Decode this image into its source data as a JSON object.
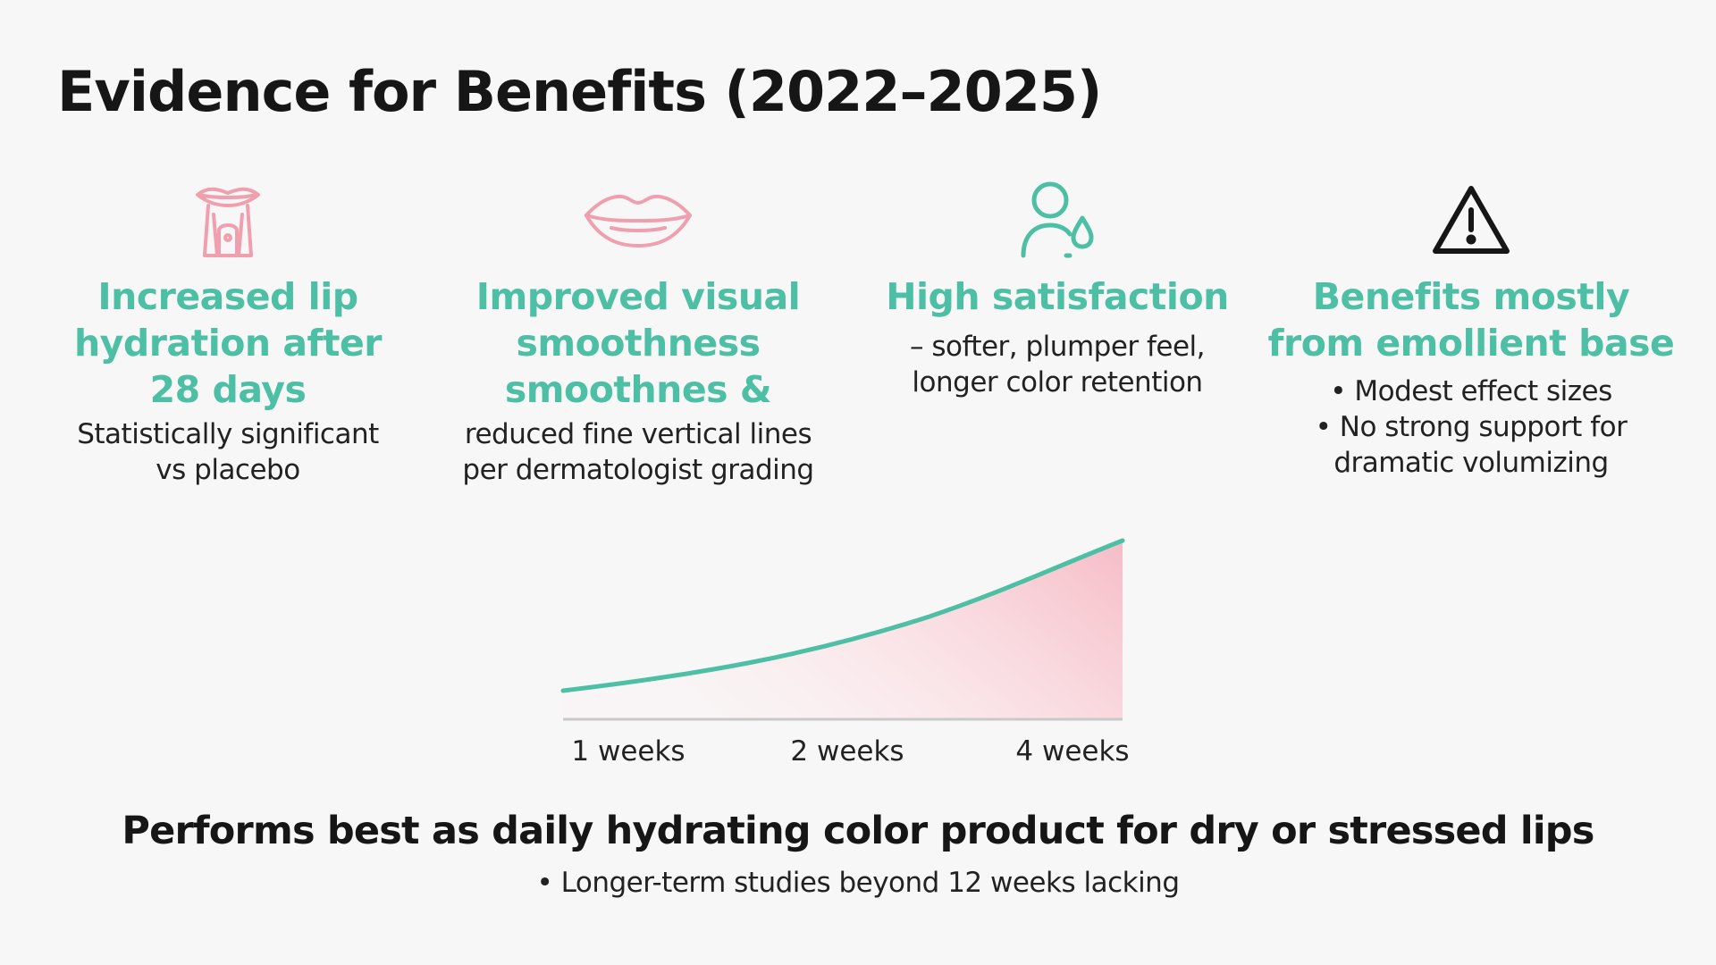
{
  "title": "Evidence for Benefits (2022–2025)",
  "columns": [
    {
      "icon": "lip-product-icon",
      "heading": [
        "Increased lip",
        "hydration after",
        "28 days"
      ],
      "body": [
        "Statistically significant",
        "vs placebo"
      ]
    },
    {
      "icon": "lips-icon",
      "heading": [
        "Improved visual",
        "smoothness",
        "smoothnes &"
      ],
      "body": [
        "reduced fine vertical lines",
        "per dermatologist grading"
      ]
    },
    {
      "icon": "user-drop-icon",
      "heading": [
        "High satisfaction"
      ],
      "body": [
        "– softer, plumper feel,",
        "longer color retention"
      ]
    },
    {
      "icon": "warning-icon",
      "heading": [
        "Benefits mostly",
        "from emollient base"
      ],
      "body": [
        "• Modest effect sizes",
        "• No strong support for",
        "dramatic volumizing"
      ]
    }
  ],
  "colors": {
    "accent_teal": "#4dbfa4",
    "accent_pink": "#ef9fae",
    "text_dark": "#161616"
  },
  "chart_data": {
    "type": "area",
    "x_labels": [
      "1 weeks",
      "2 weeks",
      "4 weeks"
    ],
    "grid": false
  },
  "footer": {
    "main": "Performs best as daily hydrating color product for dry or stressed lips",
    "note": "• Longer-term studies beyond 12 weeks lacking"
  }
}
